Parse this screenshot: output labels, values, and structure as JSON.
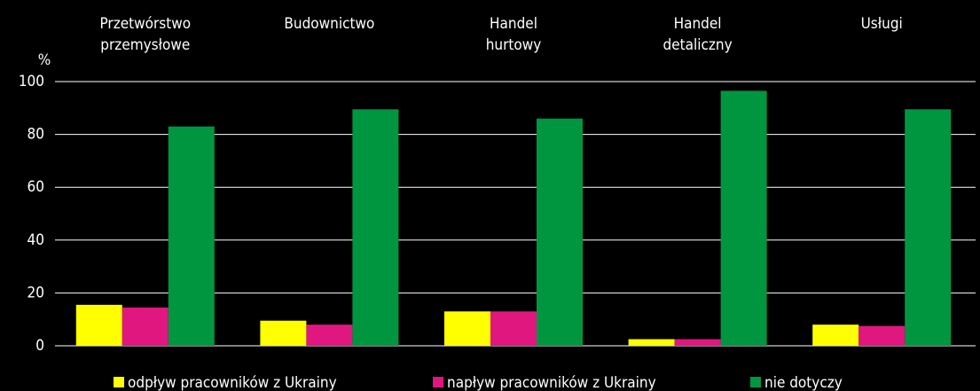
{
  "chart_data": {
    "type": "bar",
    "ylabel": "%",
    "categories": [
      [
        "Przetwórstwo",
        "przemysłowe"
      ],
      [
        "Budownictwo"
      ],
      [
        "Handel",
        "hurtowy"
      ],
      [
        "Handel",
        "detaliczny"
      ],
      [
        "Usługi"
      ]
    ],
    "series": [
      {
        "name": "odpływ pracowników z Ukrainy",
        "color": "#ffff00",
        "values": [
          15.5,
          9.5,
          13,
          2.5,
          8
        ]
      },
      {
        "name": "napływ pracowników z Ukrainy",
        "color": "#e0177f",
        "values": [
          14.5,
          8,
          13,
          2.5,
          7.5
        ]
      },
      {
        "name": "nie dotyczy",
        "color": "#009640",
        "values": [
          83,
          89.5,
          86,
          96.5,
          89.5
        ]
      }
    ],
    "ylim": [
      0,
      100
    ],
    "yticks": [
      0,
      20,
      40,
      60,
      80,
      100
    ],
    "grid": true,
    "legend": "bottom"
  }
}
